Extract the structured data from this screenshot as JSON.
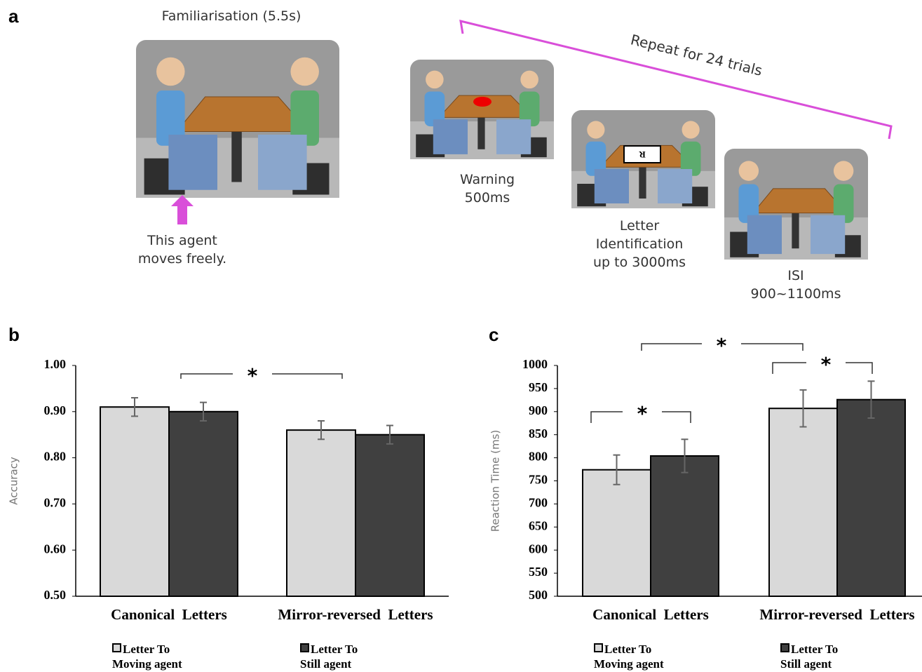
{
  "panel_a": {
    "label": "a",
    "familiarisation": "Familiarisation (5.5s)",
    "arrow_note": "This agent\nmoves freely.",
    "repeat": "Repeat for 24 trials",
    "warning": "Warning\n500ms",
    "letter_id": "Letter\nIdentification\nup to 3000ms",
    "letter_shown": "R",
    "isi": "ISI\n900~1100ms"
  },
  "chart_data": [
    {
      "type": "bar",
      "panel_label": "b",
      "y_label": "Accuracy",
      "categories": [
        "Canonical  Letters",
        "Mirror-reversed  Letters"
      ],
      "series": [
        {
          "name": "Letter To\n Moving agent",
          "color": "#d9d9d9",
          "values": [
            0.91,
            0.86
          ],
          "errors": [
            0.02,
            0.02
          ]
        },
        {
          "name": "Letter To\n Still agent",
          "color": "#404040",
          "values": [
            0.9,
            0.85
          ],
          "errors": [
            0.02,
            0.02
          ]
        }
      ],
      "ylim": [
        0.5,
        1.0
      ],
      "yticks": [
        {
          "value": 0.5,
          "label": "0.50"
        },
        {
          "value": 0.6,
          "label": "0.60"
        },
        {
          "value": 0.7,
          "label": "0.70"
        },
        {
          "value": 0.8,
          "label": "0.80"
        },
        {
          "value": 0.9,
          "label": "0.90"
        },
        {
          "value": 1.0,
          "label": "1.00"
        }
      ],
      "annotations": [
        "*"
      ]
    },
    {
      "type": "bar",
      "panel_label": "c",
      "y_label": "Reaction Time (ms)",
      "categories": [
        "Canonical  Letters",
        "Mirror-reversed  Letters"
      ],
      "series": [
        {
          "name": "Letter To\n Moving agent",
          "color": "#d9d9d9",
          "values": [
            774,
            907
          ],
          "errors": [
            32,
            40
          ]
        },
        {
          "name": "Letter To\n Still agent",
          "color": "#404040",
          "values": [
            804,
            926
          ],
          "errors": [
            36,
            40
          ]
        }
      ],
      "ylim": [
        500,
        1000
      ],
      "yticks": [
        500,
        550,
        600,
        650,
        700,
        750,
        800,
        850,
        900,
        950,
        1000
      ],
      "annotations": [
        "*",
        "*",
        "*"
      ]
    }
  ]
}
